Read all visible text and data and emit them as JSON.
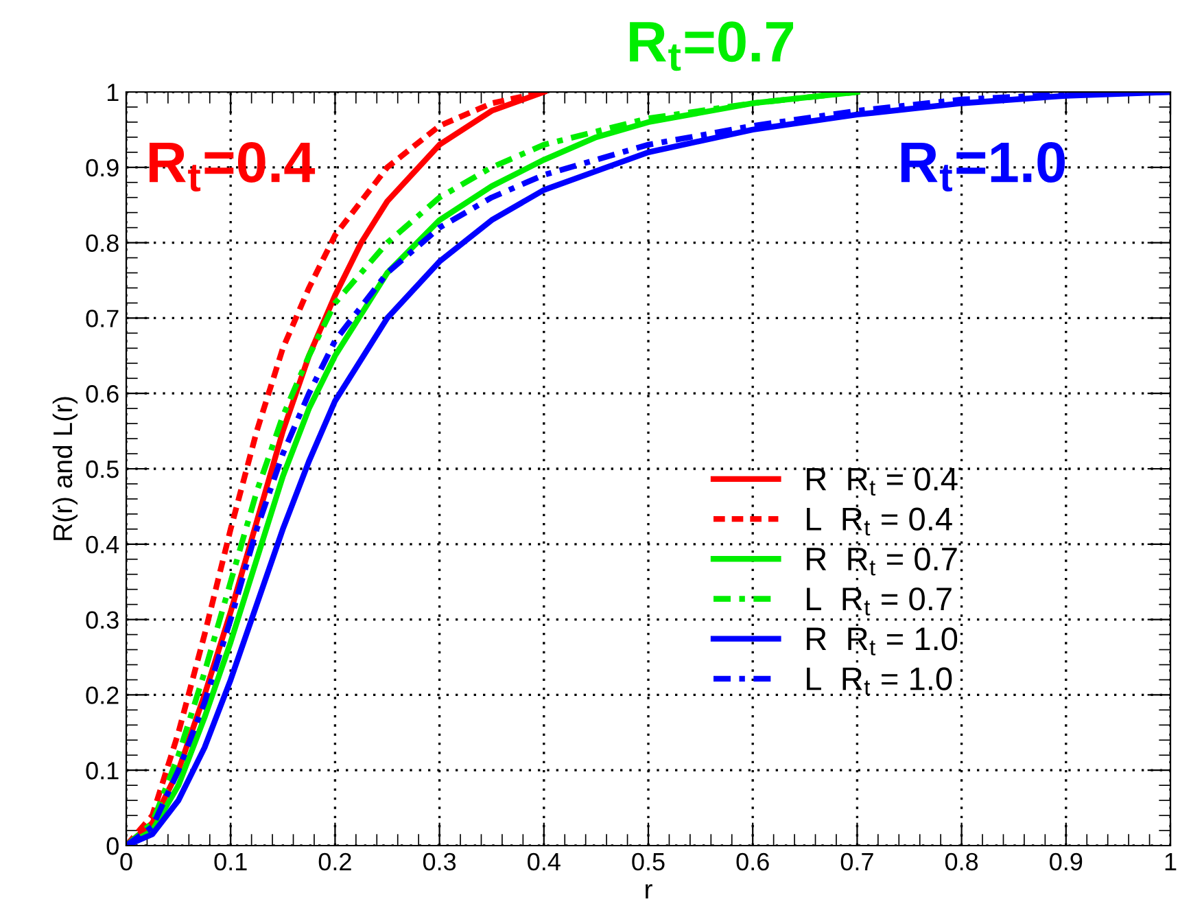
{
  "chart_data": {
    "type": "line",
    "xlabel": "r",
    "ylabel": "R(r) and L(r)",
    "xlim": [
      0,
      1
    ],
    "ylim": [
      0,
      1
    ],
    "xticks": [
      0,
      0.1,
      0.2,
      0.3,
      0.4,
      0.5,
      0.6,
      0.7,
      0.8,
      0.9,
      1
    ],
    "yticks": [
      0,
      0.1,
      0.2,
      0.3,
      0.4,
      0.5,
      0.6,
      0.7,
      0.8,
      0.9,
      1
    ],
    "grid": true,
    "legend": "right",
    "series": [
      {
        "name": "R  R$_{t}$ = 0.4",
        "color": "#ff0000",
        "line_style": "solid",
        "x": [
          0,
          0.025,
          0.05,
          0.075,
          0.1,
          0.125,
          0.15,
          0.175,
          0.2,
          0.225,
          0.25,
          0.3,
          0.35,
          0.4
        ],
        "values": [
          0,
          0.03,
          0.1,
          0.2,
          0.31,
          0.43,
          0.55,
          0.65,
          0.73,
          0.8,
          0.855,
          0.93,
          0.975,
          1.0
        ]
      },
      {
        "name": "L  R$_{t}$ = 0.4",
        "color": "#ff0000",
        "line_style": "dashed",
        "x": [
          0,
          0.025,
          0.05,
          0.075,
          0.1,
          0.125,
          0.15,
          0.175,
          0.2,
          0.25,
          0.3,
          0.35,
          0.4
        ],
        "values": [
          0,
          0.04,
          0.15,
          0.28,
          0.42,
          0.55,
          0.66,
          0.74,
          0.81,
          0.9,
          0.955,
          0.985,
          1.0
        ]
      },
      {
        "name": "R  R$_{t}$ = 0.7",
        "color": "#00ee00",
        "line_style": "solid",
        "x": [
          0,
          0.025,
          0.05,
          0.075,
          0.1,
          0.125,
          0.15,
          0.175,
          0.2,
          0.25,
          0.3,
          0.35,
          0.4,
          0.45,
          0.5,
          0.6,
          0.7
        ],
        "values": [
          0,
          0.02,
          0.08,
          0.17,
          0.27,
          0.38,
          0.49,
          0.58,
          0.65,
          0.76,
          0.83,
          0.875,
          0.91,
          0.94,
          0.96,
          0.985,
          1.0
        ]
      },
      {
        "name": "L  R$_{t}$ = 0.7",
        "color": "#00ee00",
        "line_style": "dashdot",
        "x": [
          0,
          0.025,
          0.05,
          0.075,
          0.1,
          0.125,
          0.15,
          0.175,
          0.2,
          0.25,
          0.3,
          0.35,
          0.4,
          0.5,
          0.6,
          0.7
        ],
        "values": [
          0,
          0.03,
          0.12,
          0.23,
          0.35,
          0.47,
          0.57,
          0.65,
          0.72,
          0.8,
          0.86,
          0.9,
          0.93,
          0.965,
          0.985,
          1.0
        ]
      },
      {
        "name": "R  R$_{t}$ = 1.0",
        "color": "#0000ff",
        "line_style": "solid",
        "x": [
          0,
          0.025,
          0.05,
          0.075,
          0.1,
          0.125,
          0.15,
          0.175,
          0.2,
          0.25,
          0.3,
          0.35,
          0.4,
          0.5,
          0.6,
          0.7,
          0.8,
          0.9,
          1.0
        ],
        "values": [
          0,
          0.015,
          0.06,
          0.13,
          0.22,
          0.32,
          0.42,
          0.51,
          0.59,
          0.7,
          0.775,
          0.83,
          0.87,
          0.92,
          0.95,
          0.97,
          0.985,
          0.995,
          1.0
        ]
      },
      {
        "name": "L  R$_{t}$ = 1.0",
        "color": "#0000ff",
        "line_style": "dashdot",
        "x": [
          0,
          0.025,
          0.05,
          0.075,
          0.1,
          0.125,
          0.15,
          0.175,
          0.2,
          0.25,
          0.3,
          0.35,
          0.4,
          0.5,
          0.6,
          0.7,
          0.8,
          0.9,
          1.0
        ],
        "values": [
          0,
          0.025,
          0.1,
          0.19,
          0.3,
          0.42,
          0.52,
          0.6,
          0.67,
          0.76,
          0.82,
          0.86,
          0.89,
          0.93,
          0.955,
          0.975,
          0.99,
          0.997,
          1.0
        ]
      }
    ],
    "annotations": [
      "R$_{t}$=0.4",
      "R$_{t}$=0.7",
      "R$_{t}$=1.0"
    ]
  }
}
